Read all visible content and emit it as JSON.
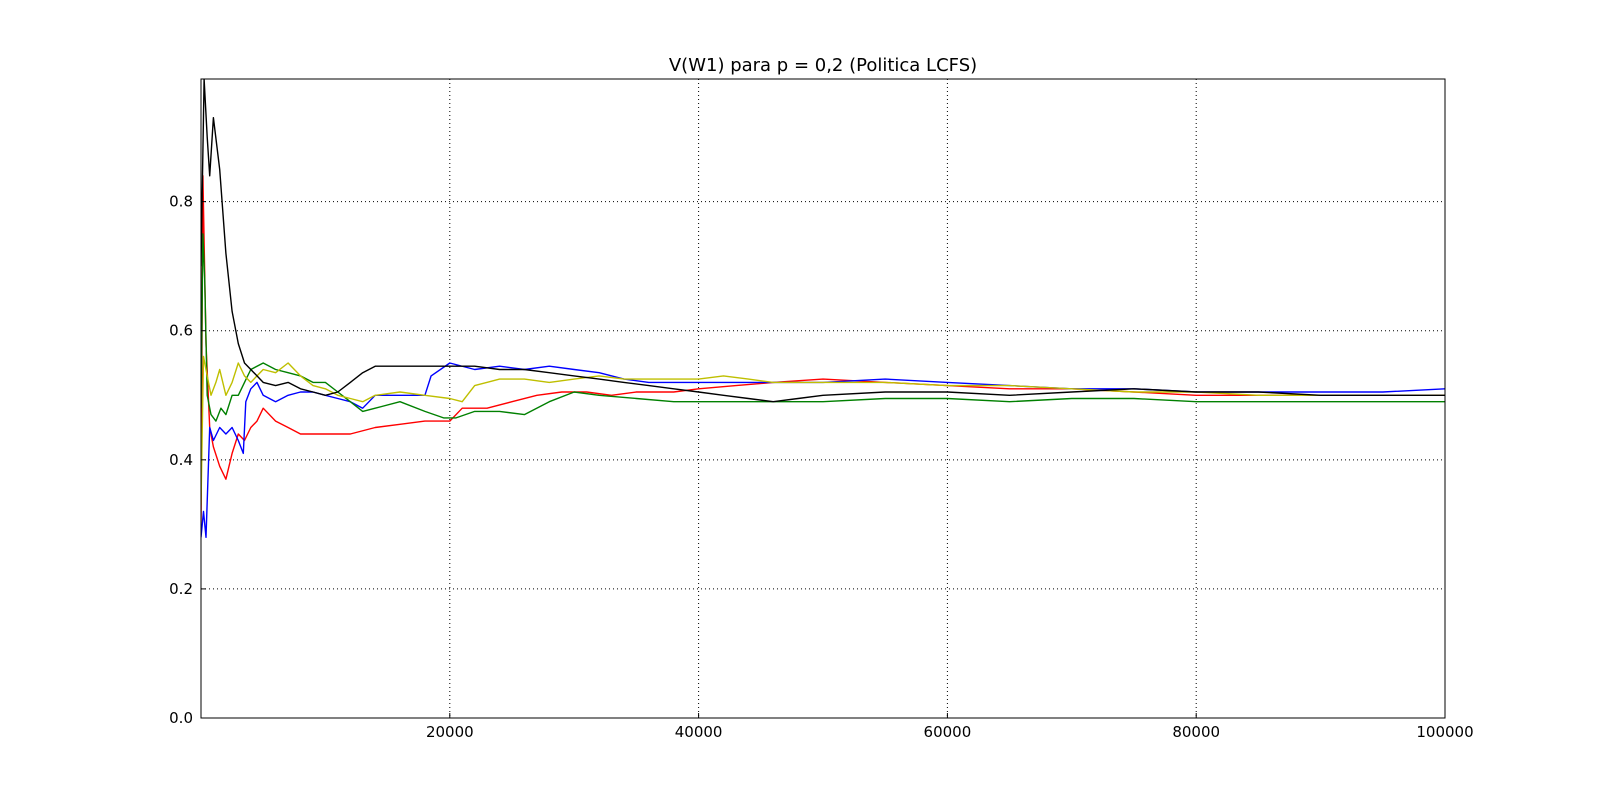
{
  "chart_data": {
    "type": "line",
    "title": "V(W1) para p = 0,2 (Politica LCFS)",
    "xlabel": "",
    "ylabel": "",
    "xlim": [
      0,
      100000
    ],
    "ylim": [
      0.0,
      0.99
    ],
    "grid": true,
    "x_ticks": [
      20000,
      40000,
      60000,
      80000,
      100000
    ],
    "x_tick_labels": [
      "20000",
      "40000",
      "60000",
      "80000",
      "100000"
    ],
    "y_ticks": [
      0.0,
      0.2,
      0.4,
      0.6,
      0.8
    ],
    "y_tick_labels": [
      "0.0",
      "0.2",
      "0.4",
      "0.6",
      "0.8"
    ],
    "series": [
      {
        "color": "#ff0000",
        "points": [
          [
            0,
            0.3
          ],
          [
            150,
            0.84
          ],
          [
            400,
            0.58
          ],
          [
            700,
            0.45
          ],
          [
            1000,
            0.42
          ],
          [
            1500,
            0.39
          ],
          [
            2000,
            0.37
          ],
          [
            2500,
            0.41
          ],
          [
            3000,
            0.44
          ],
          [
            3500,
            0.43
          ],
          [
            4000,
            0.45
          ],
          [
            4500,
            0.46
          ],
          [
            5000,
            0.48
          ],
          [
            6000,
            0.46
          ],
          [
            7000,
            0.45
          ],
          [
            8000,
            0.44
          ],
          [
            9000,
            0.44
          ],
          [
            10000,
            0.44
          ],
          [
            12000,
            0.44
          ],
          [
            14000,
            0.45
          ],
          [
            16000,
            0.455
          ],
          [
            18000,
            0.46
          ],
          [
            20000,
            0.46
          ],
          [
            21000,
            0.48
          ],
          [
            23000,
            0.48
          ],
          [
            25000,
            0.49
          ],
          [
            27000,
            0.5
          ],
          [
            29000,
            0.505
          ],
          [
            31000,
            0.505
          ],
          [
            33000,
            0.5
          ],
          [
            35000,
            0.505
          ],
          [
            38000,
            0.505
          ],
          [
            40000,
            0.51
          ],
          [
            43000,
            0.515
          ],
          [
            46000,
            0.52
          ],
          [
            50000,
            0.525
          ],
          [
            55000,
            0.52
          ],
          [
            60000,
            0.515
          ],
          [
            65000,
            0.51
          ],
          [
            70000,
            0.51
          ],
          [
            75000,
            0.505
          ],
          [
            80000,
            0.5
          ],
          [
            85000,
            0.5
          ],
          [
            90000,
            0.5
          ],
          [
            95000,
            0.5
          ],
          [
            100000,
            0.5
          ]
        ]
      },
      {
        "color": "#0000ff",
        "points": [
          [
            0,
            0.28
          ],
          [
            200,
            0.32
          ],
          [
            400,
            0.28
          ],
          [
            700,
            0.45
          ],
          [
            1000,
            0.43
          ],
          [
            1500,
            0.45
          ],
          [
            2000,
            0.44
          ],
          [
            2500,
            0.45
          ],
          [
            3000,
            0.43
          ],
          [
            3400,
            0.41
          ],
          [
            3600,
            0.49
          ],
          [
            4000,
            0.51
          ],
          [
            4500,
            0.52
          ],
          [
            5000,
            0.5
          ],
          [
            6000,
            0.49
          ],
          [
            7000,
            0.5
          ],
          [
            8000,
            0.505
          ],
          [
            9000,
            0.505
          ],
          [
            10000,
            0.5
          ],
          [
            11000,
            0.495
          ],
          [
            12000,
            0.49
          ],
          [
            13000,
            0.48
          ],
          [
            14000,
            0.5
          ],
          [
            16000,
            0.5
          ],
          [
            18000,
            0.5
          ],
          [
            18500,
            0.53
          ],
          [
            20000,
            0.55
          ],
          [
            22000,
            0.54
          ],
          [
            24000,
            0.545
          ],
          [
            26000,
            0.54
          ],
          [
            28000,
            0.545
          ],
          [
            30000,
            0.54
          ],
          [
            32000,
            0.535
          ],
          [
            34000,
            0.525
          ],
          [
            36000,
            0.52
          ],
          [
            40000,
            0.52
          ],
          [
            45000,
            0.52
          ],
          [
            50000,
            0.52
          ],
          [
            55000,
            0.525
          ],
          [
            60000,
            0.52
          ],
          [
            65000,
            0.515
          ],
          [
            70000,
            0.51
          ],
          [
            75000,
            0.51
          ],
          [
            80000,
            0.505
          ],
          [
            85000,
            0.505
          ],
          [
            90000,
            0.505
          ],
          [
            95000,
            0.505
          ],
          [
            100000,
            0.51
          ]
        ]
      },
      {
        "color": "#008000",
        "points": [
          [
            0,
            0.48
          ],
          [
            150,
            0.75
          ],
          [
            300,
            0.68
          ],
          [
            500,
            0.5
          ],
          [
            800,
            0.47
          ],
          [
            1200,
            0.46
          ],
          [
            1600,
            0.48
          ],
          [
            2000,
            0.47
          ],
          [
            2500,
            0.5
          ],
          [
            3000,
            0.5
          ],
          [
            3500,
            0.52
          ],
          [
            4000,
            0.54
          ],
          [
            5000,
            0.55
          ],
          [
            6000,
            0.54
          ],
          [
            7000,
            0.535
          ],
          [
            8000,
            0.53
          ],
          [
            9000,
            0.52
          ],
          [
            10000,
            0.52
          ],
          [
            11000,
            0.505
          ],
          [
            12000,
            0.49
          ],
          [
            13000,
            0.475
          ],
          [
            14000,
            0.48
          ],
          [
            16000,
            0.49
          ],
          [
            18000,
            0.475
          ],
          [
            19500,
            0.465
          ],
          [
            20500,
            0.465
          ],
          [
            22000,
            0.475
          ],
          [
            24000,
            0.475
          ],
          [
            26000,
            0.47
          ],
          [
            28000,
            0.49
          ],
          [
            30000,
            0.505
          ],
          [
            32000,
            0.5
          ],
          [
            35000,
            0.495
          ],
          [
            38000,
            0.49
          ],
          [
            40000,
            0.49
          ],
          [
            45000,
            0.49
          ],
          [
            50000,
            0.49
          ],
          [
            55000,
            0.495
          ],
          [
            60000,
            0.495
          ],
          [
            65000,
            0.49
          ],
          [
            70000,
            0.495
          ],
          [
            75000,
            0.495
          ],
          [
            80000,
            0.49
          ],
          [
            85000,
            0.49
          ],
          [
            90000,
            0.49
          ],
          [
            95000,
            0.49
          ],
          [
            100000,
            0.49
          ]
        ]
      },
      {
        "color": "#bfbf00",
        "points": [
          [
            0,
            0.33
          ],
          [
            200,
            0.56
          ],
          [
            500,
            0.53
          ],
          [
            800,
            0.5
          ],
          [
            1200,
            0.52
          ],
          [
            1500,
            0.54
          ],
          [
            2000,
            0.5
          ],
          [
            2500,
            0.52
          ],
          [
            3000,
            0.55
          ],
          [
            3500,
            0.53
          ],
          [
            4000,
            0.52
          ],
          [
            4500,
            0.53
          ],
          [
            5000,
            0.54
          ],
          [
            6000,
            0.535
          ],
          [
            7000,
            0.55
          ],
          [
            8000,
            0.53
          ],
          [
            9000,
            0.515
          ],
          [
            10000,
            0.51
          ],
          [
            11000,
            0.5
          ],
          [
            12000,
            0.495
          ],
          [
            13000,
            0.49
          ],
          [
            14000,
            0.5
          ],
          [
            16000,
            0.505
          ],
          [
            18000,
            0.5
          ],
          [
            20000,
            0.495
          ],
          [
            21000,
            0.49
          ],
          [
            22000,
            0.515
          ],
          [
            24000,
            0.525
          ],
          [
            26000,
            0.525
          ],
          [
            28000,
            0.52
          ],
          [
            30000,
            0.525
          ],
          [
            32000,
            0.53
          ],
          [
            34000,
            0.525
          ],
          [
            36000,
            0.525
          ],
          [
            38000,
            0.525
          ],
          [
            40000,
            0.525
          ],
          [
            42000,
            0.53
          ],
          [
            44000,
            0.525
          ],
          [
            46000,
            0.52
          ],
          [
            50000,
            0.52
          ],
          [
            55000,
            0.52
          ],
          [
            60000,
            0.515
          ],
          [
            65000,
            0.515
          ],
          [
            70000,
            0.51
          ],
          [
            75000,
            0.505
          ],
          [
            80000,
            0.505
          ],
          [
            85000,
            0.5
          ],
          [
            90000,
            0.5
          ],
          [
            95000,
            0.5
          ],
          [
            100000,
            0.5
          ]
        ]
      },
      {
        "color": "#000000",
        "points": [
          [
            0,
            0.7
          ],
          [
            250,
            0.99
          ],
          [
            500,
            0.9
          ],
          [
            700,
            0.84
          ],
          [
            1000,
            0.93
          ],
          [
            1500,
            0.85
          ],
          [
            2000,
            0.72
          ],
          [
            2500,
            0.63
          ],
          [
            3000,
            0.58
          ],
          [
            3500,
            0.55
          ],
          [
            4000,
            0.54
          ],
          [
            4500,
            0.53
          ],
          [
            5000,
            0.52
          ],
          [
            6000,
            0.515
          ],
          [
            7000,
            0.52
          ],
          [
            8000,
            0.51
          ],
          [
            9000,
            0.505
          ],
          [
            10000,
            0.5
          ],
          [
            11000,
            0.505
          ],
          [
            12000,
            0.52
          ],
          [
            13000,
            0.535
          ],
          [
            14000,
            0.545
          ],
          [
            16000,
            0.545
          ],
          [
            18000,
            0.545
          ],
          [
            20000,
            0.545
          ],
          [
            22000,
            0.545
          ],
          [
            24000,
            0.54
          ],
          [
            26000,
            0.54
          ],
          [
            28000,
            0.535
          ],
          [
            30000,
            0.53
          ],
          [
            32000,
            0.525
          ],
          [
            34000,
            0.52
          ],
          [
            36000,
            0.515
          ],
          [
            38000,
            0.51
          ],
          [
            40000,
            0.505
          ],
          [
            42000,
            0.5
          ],
          [
            44000,
            0.495
          ],
          [
            46000,
            0.49
          ],
          [
            48000,
            0.495
          ],
          [
            50000,
            0.5
          ],
          [
            55000,
            0.505
          ],
          [
            60000,
            0.505
          ],
          [
            65000,
            0.5
          ],
          [
            70000,
            0.505
          ],
          [
            75000,
            0.51
          ],
          [
            80000,
            0.505
          ],
          [
            85000,
            0.505
          ],
          [
            90000,
            0.5
          ],
          [
            95000,
            0.5
          ],
          [
            100000,
            0.5
          ]
        ]
      }
    ]
  }
}
